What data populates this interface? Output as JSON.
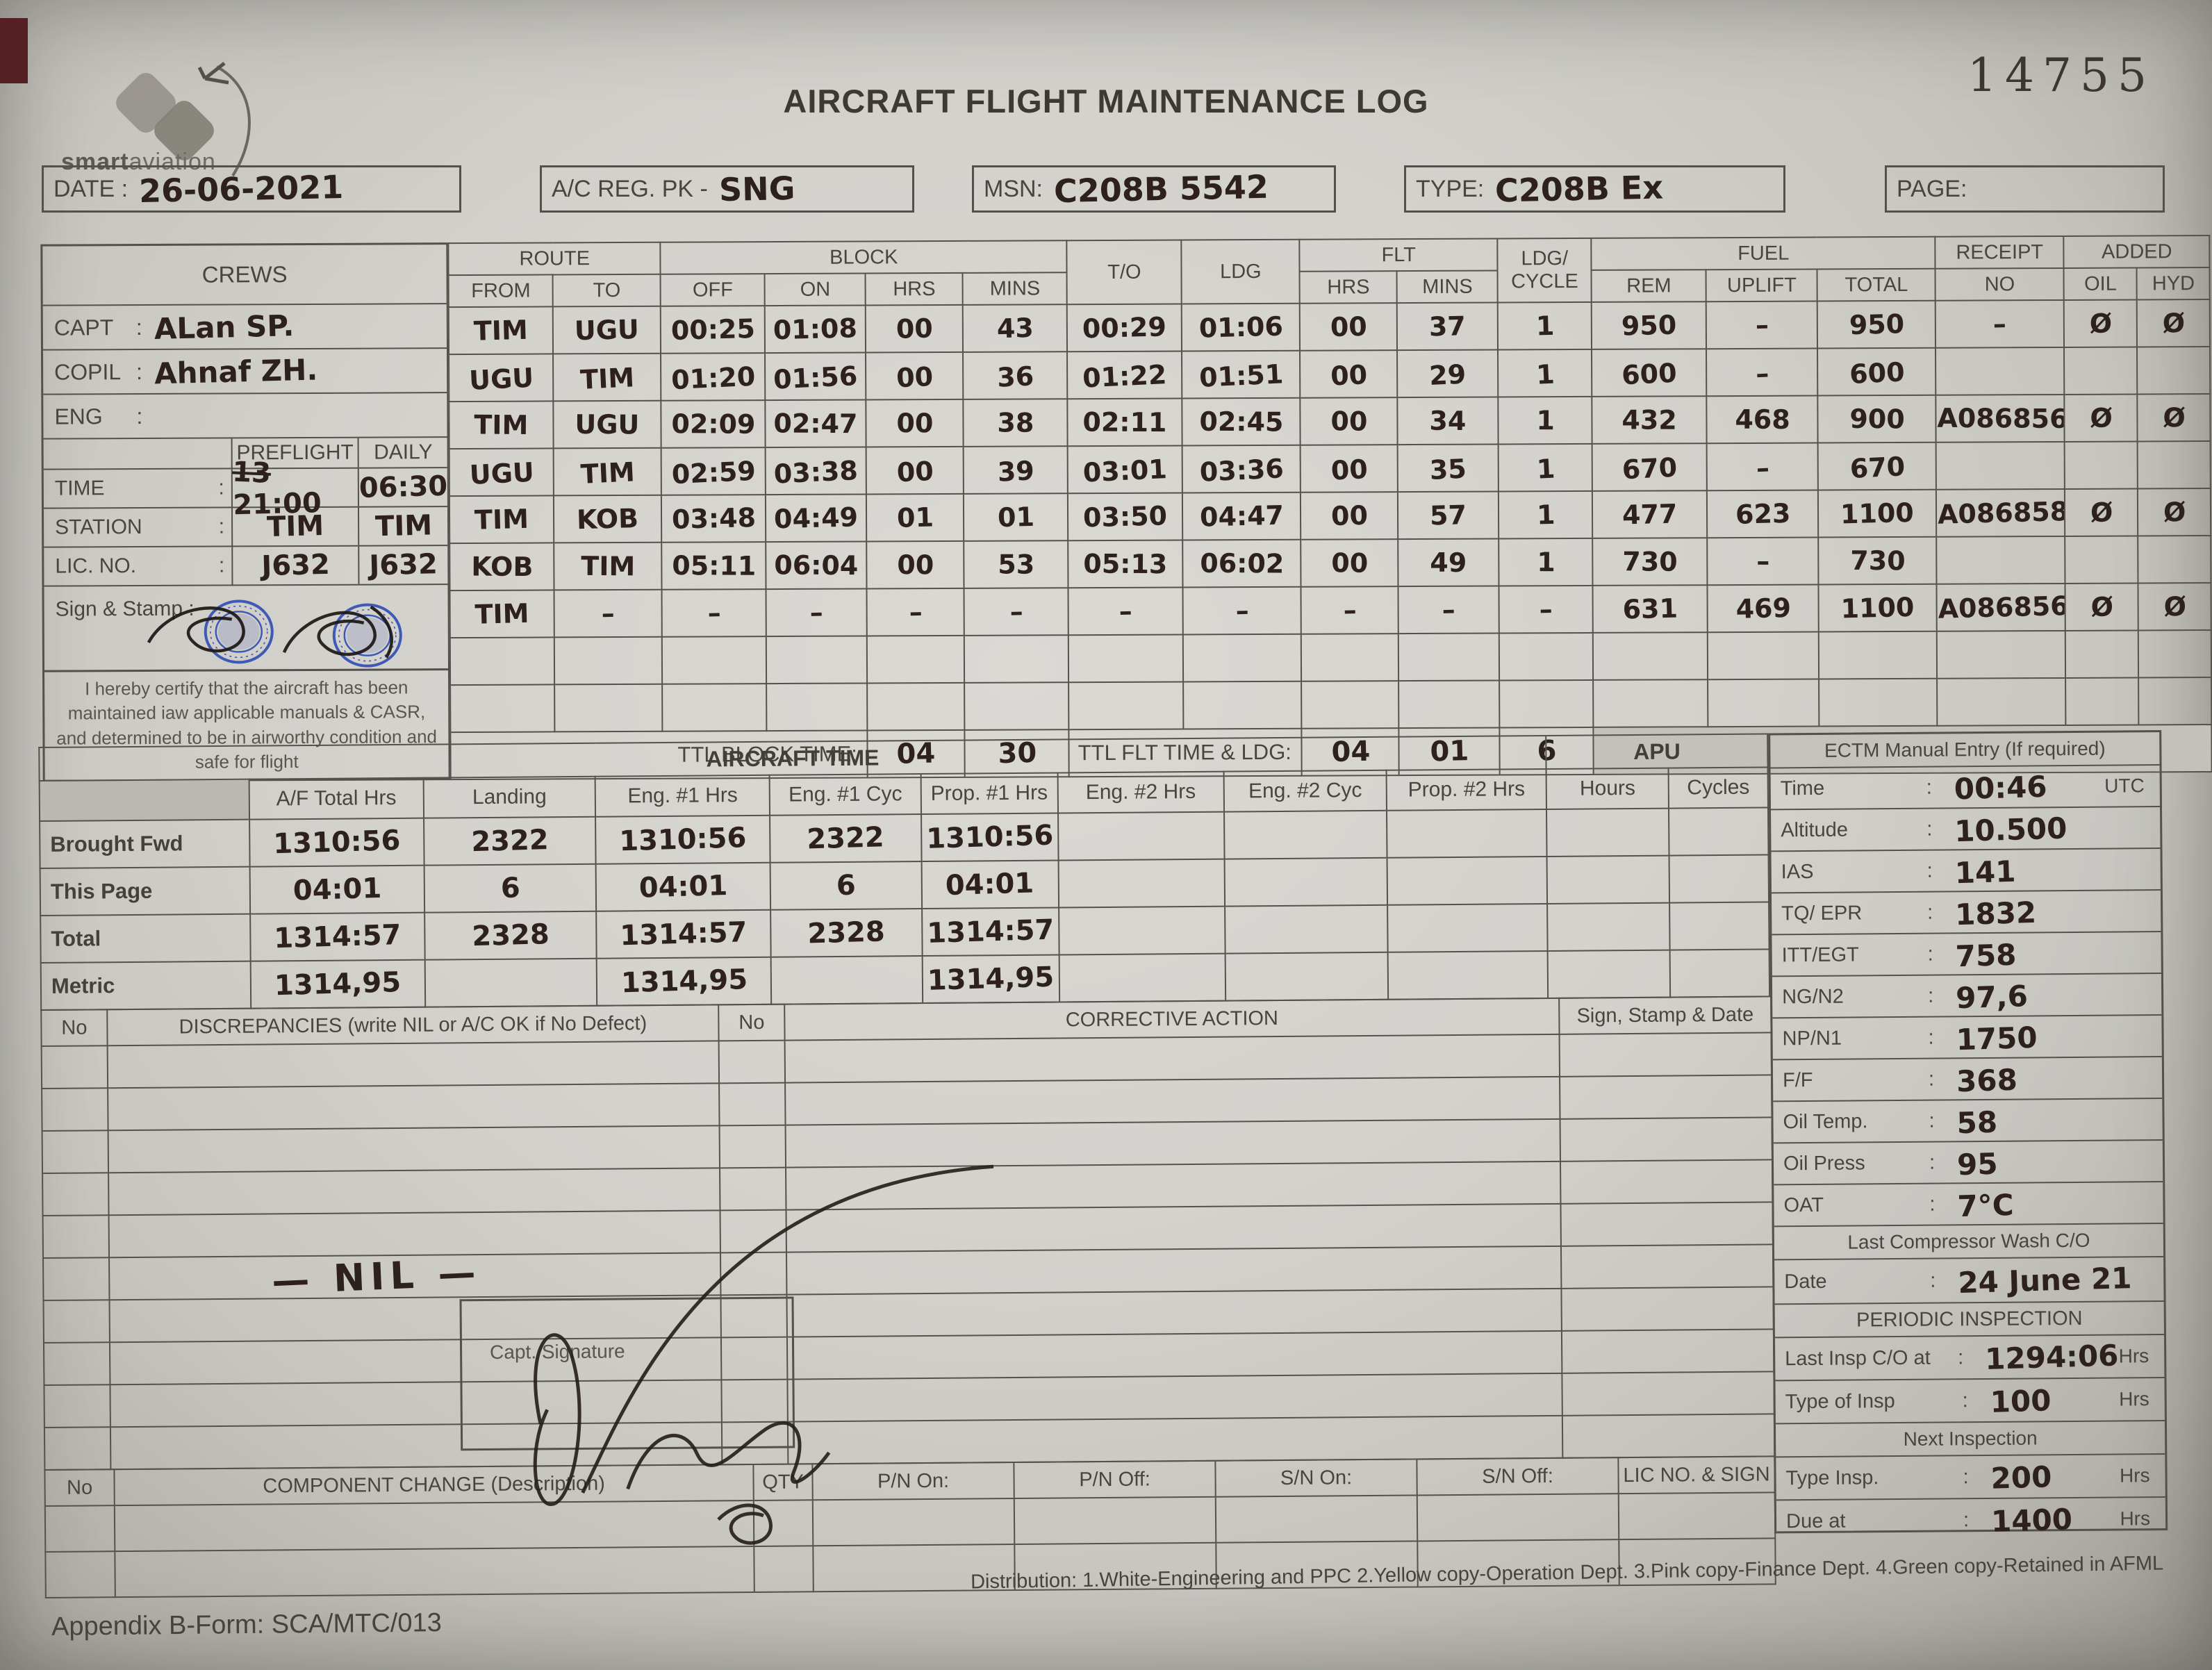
{
  "meta": {
    "serial": "14755",
    "title": "AIRCRAFT FLIGHT MAINTENANCE LOG",
    "logo_bold": "smart",
    "logo_light": "aviation"
  },
  "header": {
    "date_label": "DATE :",
    "date_value": "26-06-2021",
    "reg_label": "A/C REG. PK -",
    "reg_value": "SNG",
    "msn_label": "MSN:",
    "msn_value": "C208B 5542",
    "type_label": "TYPE:",
    "type_value": "C208B Ex",
    "page_label": "PAGE:"
  },
  "flight_table": {
    "headers": {
      "crews": "CREWS",
      "route": "ROUTE",
      "from": "FROM",
      "to": "TO",
      "block": "BLOCK",
      "off": "OFF",
      "on": "ON",
      "hrs": "HRS",
      "mins": "MINS",
      "to_time": "T/O",
      "ldg": "LDG",
      "flt": "FLT",
      "ldg_cycle_1": "LDG/",
      "ldg_cycle_2": "CYCLE",
      "fuel": "FUEL",
      "rem": "REM",
      "uplift": "UPLIFT",
      "total": "TOTAL",
      "receipt": "RECEIPT",
      "no": "NO",
      "added": "ADDED",
      "oil": "OIL",
      "hyd": "HYD"
    },
    "crew": {
      "capt_label": "CAPT",
      "capt_value": "ALan SP.",
      "copil_label": "COPIL",
      "copil_value": "Ahnaf ZH.",
      "eng_label": "ENG",
      "eng_value": ""
    },
    "info": {
      "col_preflight": "PREFLIGHT",
      "col_daily": "DAILY",
      "time_label": "TIME",
      "time_struck": "13",
      "time_preflight": "21:00",
      "time_daily": "06:30",
      "station_label": "STATION",
      "station_preflight": "TIM",
      "station_daily": "TIM",
      "lic_label": "LIC. NO.",
      "lic_preflight": "J632",
      "lic_daily": "J632",
      "sign_label": "Sign & Stamp :"
    },
    "cert_text": "I hereby certify that the aircraft has been maintained iaw applicable manuals & CASR, and determined to be in airworthy condition and safe for flight",
    "rows": [
      {
        "from": "TIM",
        "to": "UGU",
        "off": "00:25",
        "on": "01:08",
        "bh": "00",
        "bm": "43",
        "to_t": "00:29",
        "ldg": "01:06",
        "fh": "00",
        "fm": "37",
        "cyc": "1",
        "rem": "950",
        "uplift": "–",
        "total": "950",
        "receipt": "–",
        "oil": "Ø",
        "hyd": "Ø"
      },
      {
        "from": "UGU",
        "to": "TIM",
        "off": "01:20",
        "on": "01:56",
        "bh": "00",
        "bm": "36",
        "to_t": "01:22",
        "ldg": "01:51",
        "fh": "00",
        "fm": "29",
        "cyc": "1",
        "rem": "600",
        "uplift": "–",
        "total": "600",
        "receipt": "",
        "oil": "",
        "hyd": ""
      },
      {
        "from": "TIM",
        "to": "UGU",
        "off": "02:09",
        "on": "02:47",
        "bh": "00",
        "bm": "38",
        "to_t": "02:11",
        "ldg": "02:45",
        "fh": "00",
        "fm": "34",
        "cyc": "1",
        "rem": "432",
        "uplift": "468",
        "total": "900",
        "receipt": "A086856",
        "oil": "Ø",
        "hyd": "Ø"
      },
      {
        "from": "UGU",
        "to": "TIM",
        "off": "02:59",
        "on": "03:38",
        "bh": "00",
        "bm": "39",
        "to_t": "03:01",
        "ldg": "03:36",
        "fh": "00",
        "fm": "35",
        "cyc": "1",
        "rem": "670",
        "uplift": "–",
        "total": "670",
        "receipt": "",
        "oil": "",
        "hyd": ""
      },
      {
        "from": "TIM",
        "to": "KOB",
        "off": "03:48",
        "on": "04:49",
        "bh": "01",
        "bm": "01",
        "to_t": "03:50",
        "ldg": "04:47",
        "fh": "00",
        "fm": "57",
        "cyc": "1",
        "rem": "477",
        "uplift": "623",
        "total": "1100",
        "receipt": "A086858",
        "oil": "Ø",
        "hyd": "Ø"
      },
      {
        "from": "KOB",
        "to": "TIM",
        "off": "05:11",
        "on": "06:04",
        "bh": "00",
        "bm": "53",
        "to_t": "05:13",
        "ldg": "06:02",
        "fh": "00",
        "fm": "49",
        "cyc": "1",
        "rem": "730",
        "uplift": "–",
        "total": "730",
        "receipt": "",
        "oil": "",
        "hyd": ""
      },
      {
        "from": "TIM",
        "to": "–",
        "off": "–",
        "on": "–",
        "bh": "–",
        "bm": "–",
        "to_t": "–",
        "ldg": "–",
        "fh": "–",
        "fm": "–",
        "cyc": "–",
        "rem": "631",
        "uplift": "469",
        "total": "1100",
        "receipt": "A086856",
        "oil": "Ø",
        "hyd": "Ø"
      }
    ],
    "ttl": {
      "block_label": "TTL BLOCK TIME:",
      "block_hrs": "04",
      "block_mins": "30",
      "flt_label": "TTL FLT TIME & LDG:",
      "flt_hrs": "04",
      "flt_mins": "01",
      "flt_ldg": "6"
    }
  },
  "aircraft_time": {
    "title": "AIRCRAFT TIME",
    "apu_title": "APU",
    "col_headers": [
      "A/F Total Hrs",
      "Landing",
      "Eng. #1 Hrs",
      "Eng. #1 Cyc",
      "Prop. #1 Hrs",
      "Eng. #2 Hrs",
      "Eng. #2 Cyc",
      "Prop. #2 Hrs",
      "Hours",
      "Cycles"
    ],
    "rows": [
      {
        "label": "Brought Fwd",
        "values": [
          "1310:56",
          "2322",
          "1310:56",
          "2322",
          "1310:56",
          "",
          "",
          "",
          "",
          ""
        ]
      },
      {
        "label": "This Page",
        "values": [
          "04:01",
          "6",
          "04:01",
          "6",
          "04:01",
          "",
          "",
          "",
          "",
          ""
        ]
      },
      {
        "label": "Total",
        "values": [
          "1314:57",
          "2328",
          "1314:57",
          "2328",
          "1314:57",
          "",
          "",
          "",
          "",
          ""
        ]
      },
      {
        "label": "Metric",
        "values": [
          "1314,95",
          "",
          "1314,95",
          "",
          "1314,95",
          "",
          "",
          "",
          "",
          ""
        ]
      }
    ]
  },
  "ectm": {
    "title": "ECTM Manual Entry (If required)",
    "rows": [
      {
        "label": "Time",
        "value": "00:46",
        "suffix": "UTC"
      },
      {
        "label": "Altitude",
        "value": "10.500",
        "suffix": ""
      },
      {
        "label": "IAS",
        "value": "141",
        "suffix": ""
      },
      {
        "label": "TQ/ EPR",
        "value": "1832",
        "suffix": ""
      },
      {
        "label": "ITT/EGT",
        "value": "758",
        "suffix": ""
      },
      {
        "label": "NG/N2",
        "value": "97,6",
        "suffix": ""
      },
      {
        "label": "NP/N1",
        "value": "1750",
        "suffix": ""
      },
      {
        "label": "F/F",
        "value": "368",
        "suffix": ""
      },
      {
        "label": "Oil Temp.",
        "value": "58",
        "suffix": ""
      },
      {
        "label": "Oil Press",
        "value": "95",
        "suffix": ""
      },
      {
        "label": "OAT",
        "value": "7°C",
        "suffix": ""
      }
    ],
    "wash": {
      "title": "Last Compressor Wash C/O",
      "date_label": "Date",
      "date_value": "24 June 21"
    },
    "periodic": {
      "title": "PERIODIC INSPECTION",
      "rows": [
        {
          "label": "Last Insp C/O at",
          "value": "1294:06",
          "suffix": "Hrs"
        },
        {
          "label": "Type of Insp",
          "value": "100",
          "suffix": "Hrs"
        }
      ]
    },
    "next": {
      "title": "Next Inspection",
      "rows": [
        {
          "label": "Type Insp.",
          "value": "200",
          "suffix": "Hrs"
        },
        {
          "label": "Due at",
          "value": "1400",
          "suffix": "Hrs"
        }
      ]
    }
  },
  "discrepancies": {
    "no_header": "No",
    "disc_header": "DISCREPANCIES (write NIL or A/C OK if No Defect)",
    "no2_header": "No",
    "action_header": "CORRECTIVE ACTION",
    "sign_header": "Sign, Stamp & Date",
    "nil_text": "— NIL —",
    "capt_sig_label": "Capt. Signature"
  },
  "component_change": {
    "no_header": "No",
    "desc_header": "COMPONENT CHANGE (Description)",
    "qty_header": "QTY",
    "pn_on": "P/N On:",
    "pn_off": "P/N Off:",
    "sn_on": "S/N On:",
    "sn_off": "S/N Off:",
    "lic_header": "LIC NO. & SIGN"
  },
  "footer": {
    "distribution": "Distribution: 1.White-Engineering and PPC  2.Yellow copy-Operation Dept.  3.Pink copy-Finance Dept.  4.Green copy-Retained in AFML",
    "appendix": "Appendix B-Form: SCA/MTC/013"
  }
}
